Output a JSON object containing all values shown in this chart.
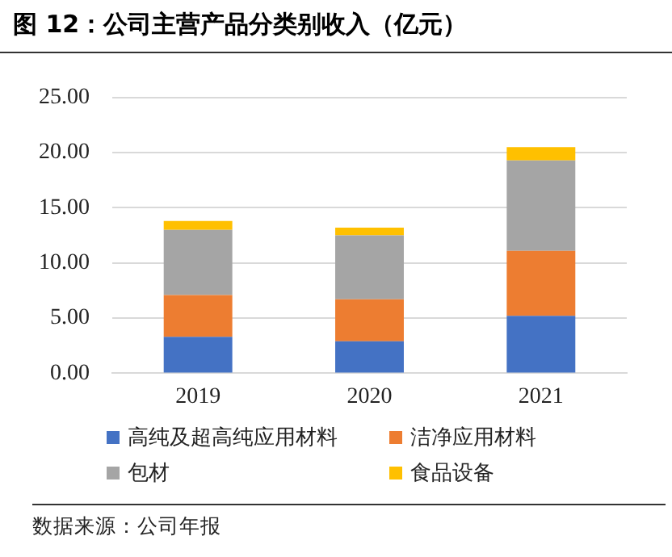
{
  "chart_data": {
    "type": "bar",
    "title": "图 12：公司主营产品分类别收入（亿元）",
    "categories": [
      "2019",
      "2020",
      "2021"
    ],
    "stacked": true,
    "series": [
      {
        "name": "高纯及超高纯应用材料",
        "color": "#4472c4",
        "values": [
          3.3,
          2.9,
          5.2
        ]
      },
      {
        "name": "洁净应用材料",
        "color": "#ed7d31",
        "values": [
          3.8,
          3.8,
          5.9
        ]
      },
      {
        "name": "包材",
        "color": "#a5a5a5",
        "values": [
          5.9,
          5.8,
          8.2
        ]
      },
      {
        "name": "食品设备",
        "color": "#ffc000",
        "values": [
          0.8,
          0.7,
          1.2
        ]
      }
    ],
    "ylim": [
      0,
      25
    ],
    "yticks": [
      {
        "value": 0,
        "label": "0.00"
      },
      {
        "value": 5,
        "label": "5.00"
      },
      {
        "value": 10,
        "label": "10.00"
      },
      {
        "value": 15,
        "label": "15.00"
      },
      {
        "value": 20,
        "label": "20.00"
      },
      {
        "value": 25,
        "label": "25.00"
      }
    ],
    "grid": "y",
    "legend": "bottom",
    "annotations": [
      "数据来源：公司年报"
    ]
  }
}
